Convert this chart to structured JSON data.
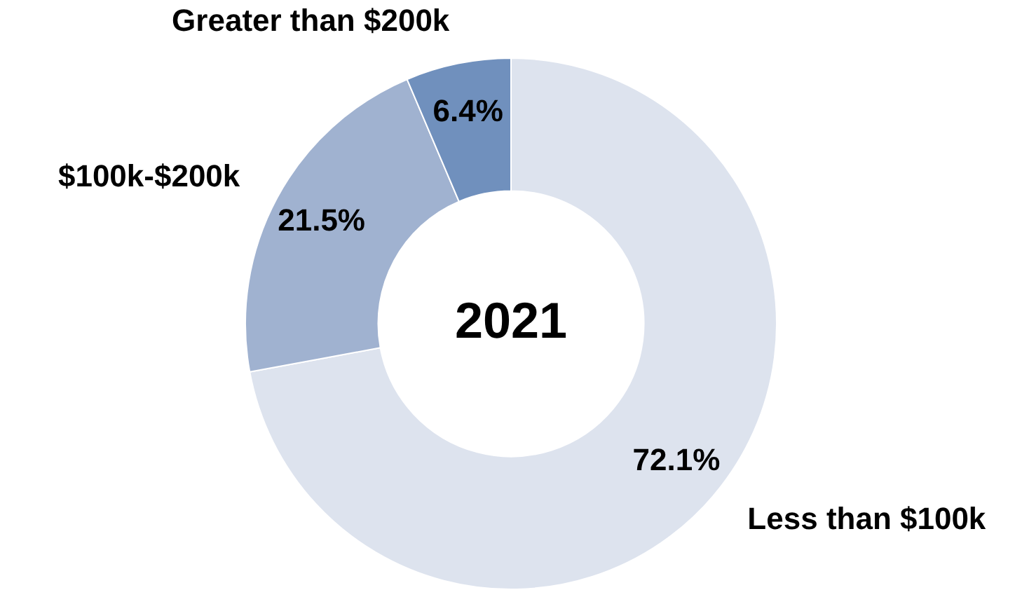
{
  "chart_data": {
    "type": "donut",
    "title": "2021",
    "categories": [
      "Less than $100k",
      "$100k-$200k",
      "Greater than $200k"
    ],
    "values": [
      72.1,
      21.5,
      6.4
    ],
    "colors": [
      "#dde3ee",
      "#a0b2d0",
      "#7090bd"
    ],
    "value_labels": [
      "72.1%",
      "21.5%",
      "6.4%"
    ],
    "legend": false
  }
}
